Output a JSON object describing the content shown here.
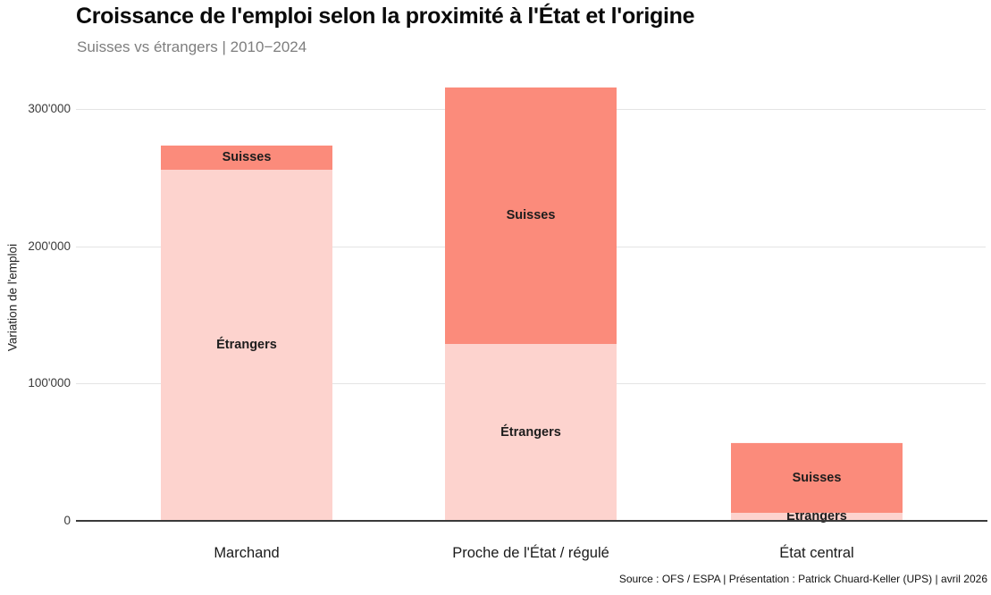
{
  "title": "Croissance de l'emploi selon la proximité à l'État et l'origine",
  "subtitle": "Suisses vs étrangers | 2010−2024",
  "footer": "Source : OFS / ESPA | Présentation : Patrick Chuard-Keller (UPS) | avril 2026",
  "chart_data": {
    "type": "bar",
    "stacked": true,
    "title": "Croissance de l'emploi selon la proximité à l'État et l'origine",
    "subtitle": "Suisses vs étrangers | 2010−2024",
    "categories": [
      "Marchand",
      "Proche de l'État / régulé",
      "État central"
    ],
    "series": [
      {
        "name": "Étrangers",
        "color": "#fdd3ce",
        "values": [
          256000,
          129000,
          6000
        ]
      },
      {
        "name": "Suisses",
        "color": "#fb8b7b",
        "values": [
          18000,
          187000,
          51000
        ]
      }
    ],
    "totals": [
      274000,
      316000,
      57000
    ],
    "xlabel": "",
    "ylabel": "Variation de l'emploi",
    "ylim": [
      0,
      320000
    ],
    "yticks": [
      0,
      100000,
      200000,
      300000
    ],
    "ytick_labels": [
      "0",
      "100'000",
      "200'000",
      "300'000"
    ],
    "grid": "horizontal",
    "legend": "none (labels inside bar segments)",
    "annotations": [
      "Suisses",
      "Étrangers"
    ]
  },
  "colors": {
    "segment_etrangers": "#fdd3ce",
    "segment_suisses": "#fb8b7b",
    "gridline": "#e4e4e4",
    "axis_line": "#3a3a3a",
    "title_text": "#0a0a0a",
    "subtitle_text": "#7e7e7e",
    "label_text": "#1d1d1d"
  }
}
